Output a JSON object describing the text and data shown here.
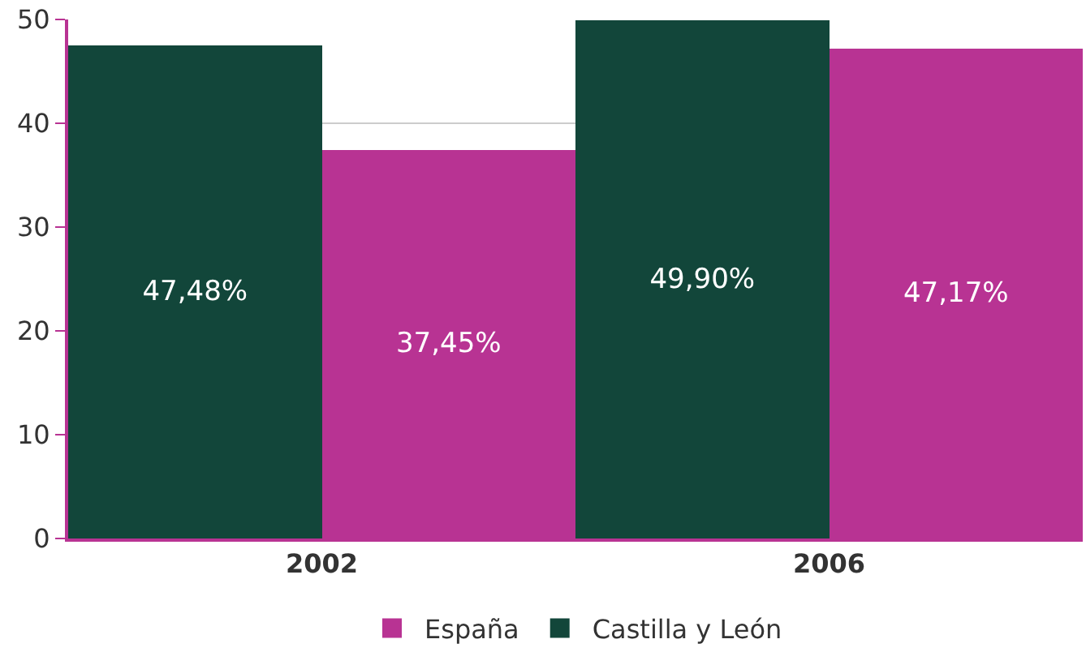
{
  "chart_data": {
    "type": "bar",
    "categories": [
      "2002",
      "2006"
    ],
    "series": [
      {
        "name": "Castilla y León",
        "color": "#12463a",
        "values": [
          47.48,
          49.9
        ],
        "value_labels": [
          "47,48%",
          "49,90%"
        ]
      },
      {
        "name": "España",
        "color": "#b83393",
        "values": [
          37.45,
          47.17
        ],
        "value_labels": [
          "37,45%",
          "47,17%"
        ]
      }
    ],
    "ylim": [
      0,
      50
    ],
    "yticks": [
      0,
      10,
      20,
      30,
      40,
      50
    ],
    "grid": "y",
    "legend": "bottom"
  }
}
